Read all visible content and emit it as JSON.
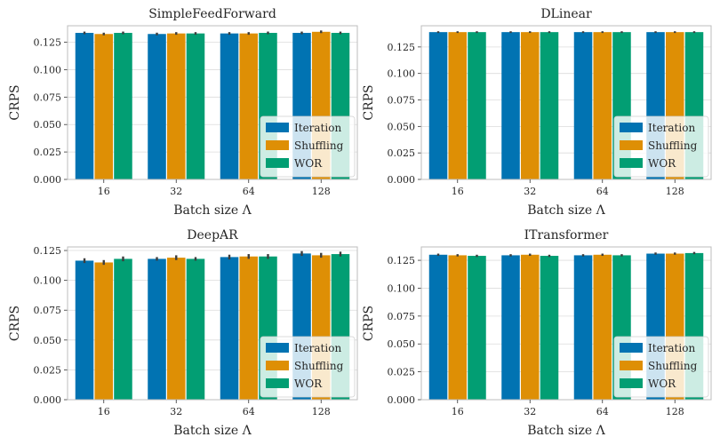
{
  "chart_data": [
    {
      "type": "bar",
      "title": "SimpleFeedForward",
      "xlabel": "Batch size Λ",
      "ylabel": "CRPS",
      "categories": [
        "16",
        "32",
        "64",
        "128"
      ],
      "ylim": [
        0,
        0.14
      ],
      "yticks": [
        "0.000",
        "0.025",
        "0.050",
        "0.075",
        "0.100",
        "0.125"
      ],
      "legend_position": "lower right",
      "grid": true,
      "series": [
        {
          "name": "Iteration",
          "color": "#0173b2",
          "values": [
            0.1335,
            0.1325,
            0.133,
            0.1335
          ],
          "err": [
            0.0012,
            0.0012,
            0.0012,
            0.0012
          ]
        },
        {
          "name": "Shuffling",
          "color": "#de8f05",
          "values": [
            0.1325,
            0.133,
            0.133,
            0.1345
          ],
          "err": [
            0.0012,
            0.0012,
            0.0012,
            0.0012
          ]
        },
        {
          "name": "WOR",
          "color": "#029e73",
          "values": [
            0.1335,
            0.133,
            0.1335,
            0.1335
          ],
          "err": [
            0.0012,
            0.0012,
            0.0012,
            0.0012
          ]
        }
      ]
    },
    {
      "type": "bar",
      "title": "DLinear",
      "xlabel": "Batch size Λ",
      "ylabel": "CRPS",
      "categories": [
        "16",
        "32",
        "64",
        "128"
      ],
      "ylim": [
        0,
        0.145
      ],
      "yticks": [
        "0.000",
        "0.025",
        "0.050",
        "0.075",
        "0.100",
        "0.125"
      ],
      "legend_position": "lower right",
      "grid": true,
      "series": [
        {
          "name": "Iteration",
          "color": "#0173b2",
          "values": [
            0.139,
            0.139,
            0.139,
            0.139
          ],
          "err": [
            0.0008,
            0.0008,
            0.0008,
            0.0008
          ]
        },
        {
          "name": "Shuffling",
          "color": "#de8f05",
          "values": [
            0.139,
            0.139,
            0.139,
            0.139
          ],
          "err": [
            0.0008,
            0.0008,
            0.0008,
            0.0008
          ]
        },
        {
          "name": "WOR",
          "color": "#029e73",
          "values": [
            0.139,
            0.139,
            0.139,
            0.139
          ],
          "err": [
            0.0008,
            0.0008,
            0.0008,
            0.0008
          ]
        }
      ]
    },
    {
      "type": "bar",
      "title": "DeepAR",
      "xlabel": "Batch size Λ",
      "ylabel": "CRPS",
      "categories": [
        "16",
        "32",
        "64",
        "128"
      ],
      "ylim": [
        0,
        0.128
      ],
      "yticks": [
        "0.000",
        "0.025",
        "0.050",
        "0.075",
        "0.100",
        "0.125"
      ],
      "legend_position": "lower right",
      "grid": true,
      "series": [
        {
          "name": "Iteration",
          "color": "#0173b2",
          "values": [
            0.1165,
            0.118,
            0.1195,
            0.1225
          ],
          "err": [
            0.002,
            0.0015,
            0.002,
            0.002
          ]
        },
        {
          "name": "Shuffling",
          "color": "#de8f05",
          "values": [
            0.115,
            0.119,
            0.12,
            0.121
          ],
          "err": [
            0.002,
            0.002,
            0.002,
            0.002
          ]
        },
        {
          "name": "WOR",
          "color": "#029e73",
          "values": [
            0.118,
            0.118,
            0.12,
            0.122
          ],
          "err": [
            0.002,
            0.0015,
            0.002,
            0.002
          ]
        }
      ]
    },
    {
      "type": "bar",
      "title": "ITransformer",
      "xlabel": "Batch size Λ",
      "ylabel": "CRPS",
      "categories": [
        "16",
        "32",
        "64",
        "128"
      ],
      "ylim": [
        0,
        0.137
      ],
      "yticks": [
        "0.000",
        "0.025",
        "0.050",
        "0.075",
        "0.100",
        "0.125"
      ],
      "legend_position": "lower right",
      "grid": true,
      "series": [
        {
          "name": "Iteration",
          "color": "#0173b2",
          "values": [
            0.13,
            0.1295,
            0.1295,
            0.131
          ],
          "err": [
            0.001,
            0.001,
            0.001,
            0.001
          ]
        },
        {
          "name": "Shuffling",
          "color": "#de8f05",
          "values": [
            0.1295,
            0.13,
            0.13,
            0.131
          ],
          "err": [
            0.001,
            0.001,
            0.001,
            0.001
          ]
        },
        {
          "name": "WOR",
          "color": "#029e73",
          "values": [
            0.129,
            0.129,
            0.1295,
            0.1315
          ],
          "err": [
            0.001,
            0.001,
            0.001,
            0.001
          ]
        }
      ]
    }
  ]
}
